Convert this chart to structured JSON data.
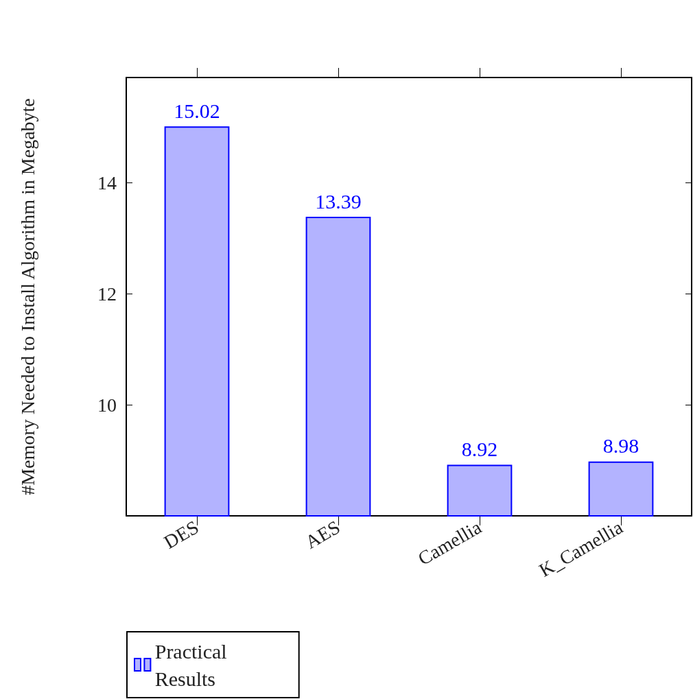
{
  "chart_data": {
    "type": "bar",
    "ylabel": "#Memory Needed to Install Algorithm in Megabyte",
    "categories": [
      "DES",
      "AES",
      "Camellia",
      "K_Camellia"
    ],
    "series": [
      {
        "name": "Practical Results",
        "color": "#0000ff",
        "values": [
          15.02,
          13.39,
          8.92,
          8.98
        ]
      }
    ],
    "ylim": [
      8,
      15.9
    ],
    "yticks": [
      10,
      12,
      14
    ],
    "data_labels": true,
    "grid": false,
    "legend": "bottom left"
  }
}
